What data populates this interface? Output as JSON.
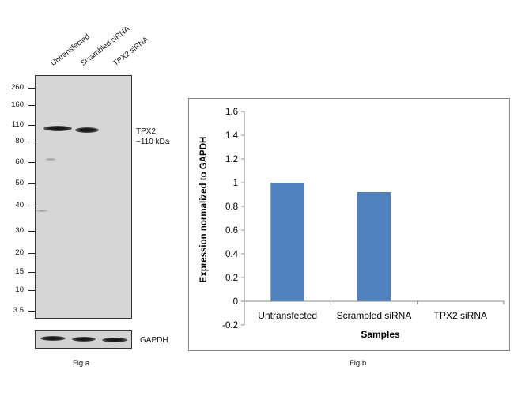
{
  "western_blot": {
    "lanes": [
      "Untransfected",
      "Scrambled siRNA",
      "TPX2  siRNA"
    ],
    "mw_markers": [
      "260",
      "160",
      "110",
      "80",
      "60",
      "50",
      "40",
      "30",
      "20",
      "15",
      "10",
      "3.5"
    ],
    "target_label_line1": "TPX2",
    "target_label_line2": "~110 kDa",
    "loading_control_label": "GAPDH",
    "caption": "Fig a"
  },
  "caption_b": "Fig b",
  "chart_data": {
    "type": "bar",
    "categories": [
      "Untransfected",
      "Scrambled siRNA",
      "TPX2 siRNA"
    ],
    "values": [
      1.0,
      0.92,
      0.0
    ],
    "title": "",
    "xlabel": "Samples",
    "ylabel": "Expression normalized to GAPDH",
    "ylim": [
      -0.2,
      1.6
    ],
    "yticks": [
      "1.6",
      "1.4",
      "1.2",
      "1",
      "0.8",
      "0.6",
      "0.4",
      "0.2",
      "0",
      "-0.2"
    ],
    "ytick_values": [
      1.6,
      1.4,
      1.2,
      1.0,
      0.8,
      0.6,
      0.4,
      0.2,
      0,
      -0.2
    ],
    "bar_color": "#4f81bd",
    "grid": false,
    "legend": "none"
  }
}
